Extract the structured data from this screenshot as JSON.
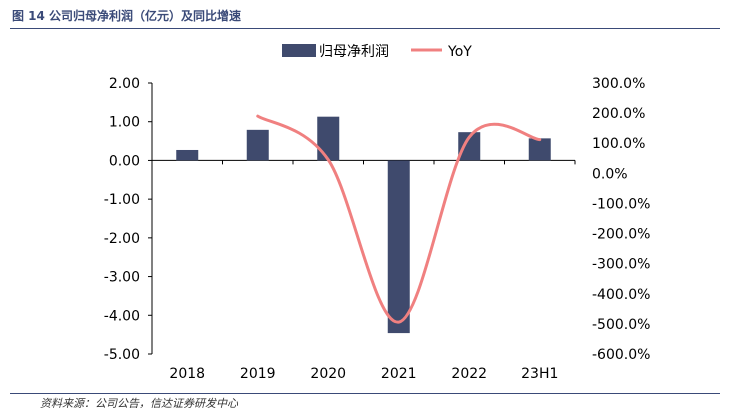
{
  "figure_title": "图 14 公司归母净利润（亿元）及同比增速",
  "source_note": "资料来源：公司公告，信达证券研发中心",
  "chart_data": {
    "type": "bar",
    "categories": [
      "2018",
      "2019",
      "2020",
      "2021",
      "2022",
      "23H1"
    ],
    "series": [
      {
        "name": "归母净利润",
        "type": "bar",
        "axis": "left",
        "color": "#3f4a6d",
        "values": [
          0.27,
          0.79,
          1.13,
          -4.46,
          0.73,
          0.57
        ]
      },
      {
        "name": "YoY",
        "type": "line",
        "axis": "right",
        "color": "#f08080",
        "values": [
          null,
          190.0,
          45.0,
          -494.0,
          120.0,
          112.0
        ]
      }
    ],
    "y_left": {
      "ylim": [
        -5.0,
        2.0
      ],
      "ticks": [
        2.0,
        1.0,
        0.0,
        -1.0,
        -2.0,
        -3.0,
        -4.0,
        -5.0
      ],
      "tick_labels": [
        "2.00",
        "1.00",
        "0.00",
        "-1.00",
        "-2.00",
        "-3.00",
        "-4.00",
        "-5.00"
      ]
    },
    "y_right": {
      "ylim": [
        -600.0,
        300.0
      ],
      "ticks": [
        300,
        200,
        100,
        0,
        -100,
        -200,
        -300,
        -400,
        -500,
        -600
      ],
      "tick_labels": [
        "300.0%",
        "200.0%",
        "100.0%",
        "0.0%",
        "-100.0%",
        "-200.0%",
        "-300.0%",
        "-400.0%",
        "-500.0%",
        "-600.0%"
      ]
    },
    "grid": false,
    "legend_position": "top"
  }
}
